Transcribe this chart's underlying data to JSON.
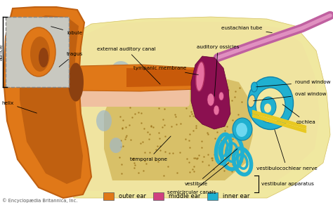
{
  "bg_color": "#ffffff",
  "copyright": "© Encyclopædia Britannica, Inc.",
  "outer_ear_color": "#E07818",
  "outer_ear_dark": "#C06010",
  "bone_color": "#E8D870",
  "bone_light": "#F0E8A0",
  "bone_spots": "#C8A040",
  "skin_pink": "#F0C0A0",
  "middle_ear_color": "#D04080",
  "middle_ear_light": "#E870A0",
  "inner_ear_color": "#20B0D0",
  "inner_ear_dark": "#1080A8",
  "nerve_yellow": "#E8C820",
  "eustachian_color": "#C060A0",
  "gray_blue": "#A0B8C8",
  "legend_items": [
    {
      "label": "outer ear",
      "color": "#E07818"
    },
    {
      "label": "middle ear",
      "color": "#D04080"
    },
    {
      "label": "inner ear",
      "color": "#20B0D0"
    }
  ],
  "figsize": [
    4.74,
    2.92
  ],
  "dpi": 100
}
